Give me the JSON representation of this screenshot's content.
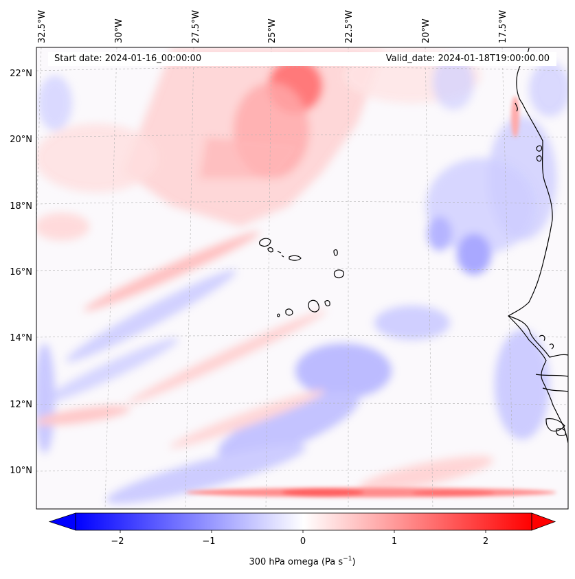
{
  "map": {
    "title_left": "Start date: 2024-01-16_00:00:00",
    "title_right": "Valid_date: 2024-01-18T19:00:00.00",
    "lon_labels": [
      "32.5°W",
      "30°W",
      "27.5°W",
      "25°W",
      "22.5°W",
      "20°W",
      "17.5°W"
    ],
    "lat_labels": [
      "22°N",
      "20°N",
      "18°N",
      "16°N",
      "14°N",
      "12°N",
      "10°N"
    ],
    "extent": {
      "lon_min": -32.9,
      "lon_max": -15.6,
      "lat_min": 8.9,
      "lat_max": 22.7
    },
    "field": "300 hPa omega",
    "colors": {
      "negative": "#0000ff",
      "neutral": "#ffffff",
      "positive": "#ff0000",
      "coast": "#000000"
    }
  },
  "colorbar": {
    "label_main": "300 hPa omega (Pa s",
    "label_exp": "−1",
    "label_close": ")",
    "ticks": [
      "−2",
      "−1",
      "0",
      "1",
      "2"
    ],
    "range": [
      -2.6,
      2.6
    ],
    "extend": "both"
  }
}
